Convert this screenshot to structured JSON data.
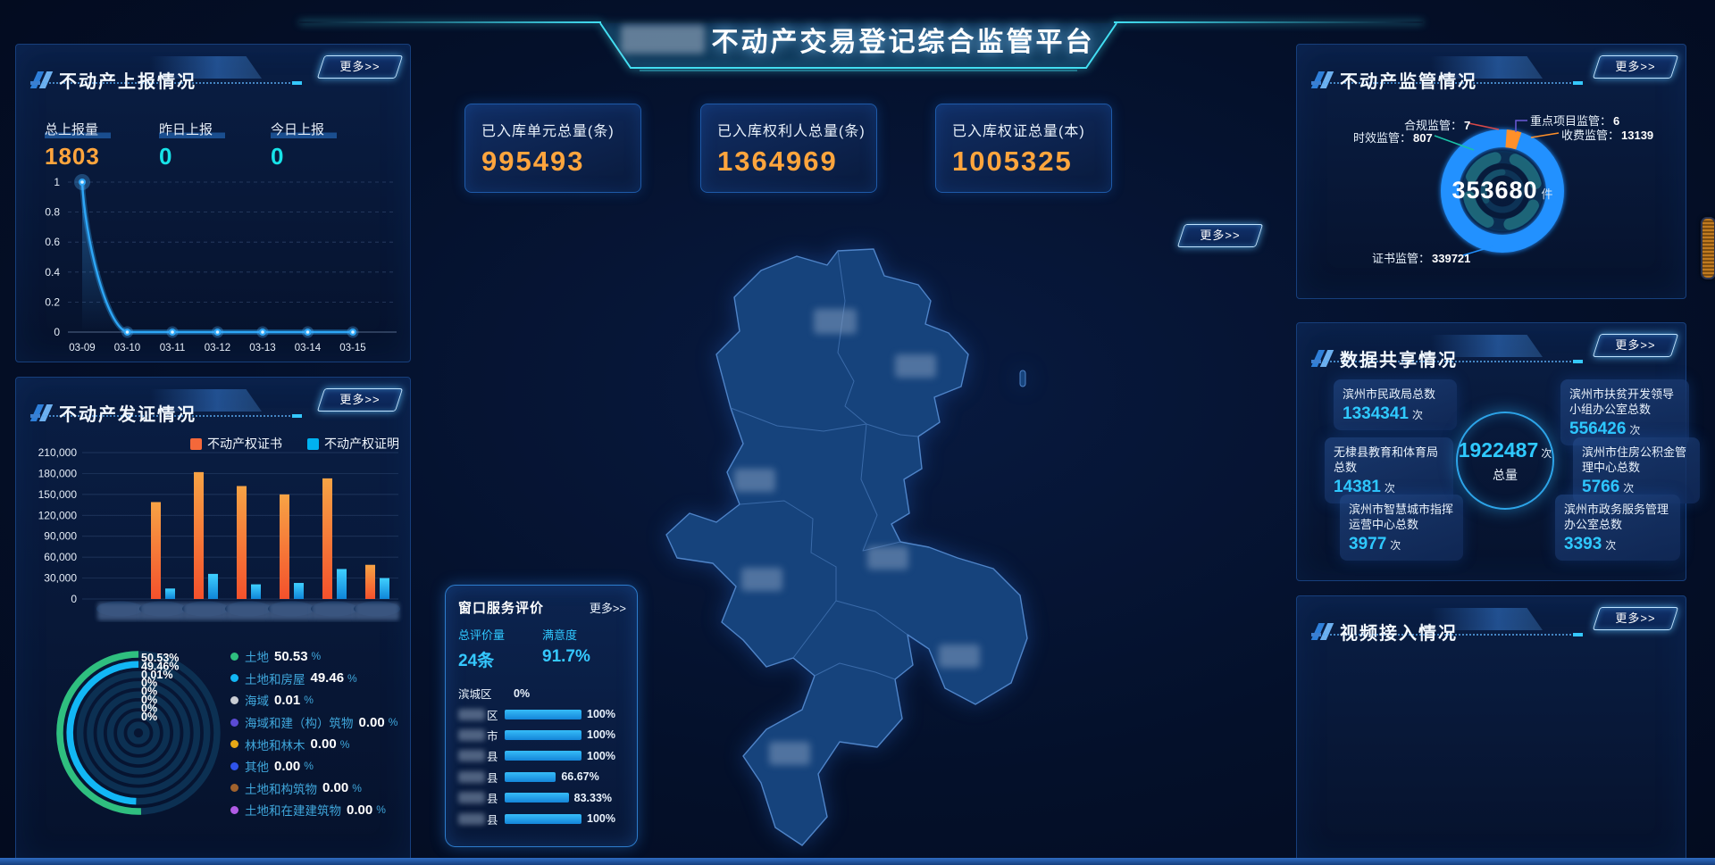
{
  "title": {
    "text": "不动产交易登记综合监管平台"
  },
  "buttons": {
    "more": "更多>>"
  },
  "panels": {
    "report": {
      "title": "不动产上报情况",
      "stats": [
        {
          "label": "总上报量",
          "value": "1803"
        },
        {
          "label": "昨日上报",
          "value": "0"
        },
        {
          "label": "今日上报",
          "value": "0"
        }
      ]
    },
    "issuance": {
      "title": "不动产发证情况"
    },
    "stat_cards": [
      {
        "label": "已入库单元总量(条)",
        "value": "995493"
      },
      {
        "label": "已入库权利人总量(条)",
        "value": "1364969"
      },
      {
        "label": "已入库权证总量(本)",
        "value": "1005325"
      }
    ],
    "window_service": {
      "title": "窗口服务评价",
      "more": "更多>>",
      "stats": [
        {
          "label": "总评价量",
          "value": "24条"
        },
        {
          "label": "满意度",
          "value": "91.7%"
        }
      ]
    },
    "supervision": {
      "title": "不动产监管情况",
      "center_value": "353680",
      "center_unit": "件",
      "callouts": [
        {
          "label": "时效监管：",
          "value": "807"
        },
        {
          "label": "合规监管：",
          "value": "7"
        },
        {
          "label": "重点项目监管：",
          "value": "6"
        },
        {
          "label": "收费监管：",
          "value": "13139"
        },
        {
          "label": "证书监管：",
          "value": "339721"
        }
      ]
    },
    "sharing": {
      "title": "数据共享情况",
      "total": {
        "value": "1922487",
        "unit": "次",
        "label": "总量"
      },
      "boxes": [
        {
          "name": "滨州市民政局总数",
          "value": "1334341",
          "unit": "次"
        },
        {
          "name": "无棣县教育和体育局总数",
          "value": "14381",
          "unit": "次"
        },
        {
          "name": "滨州市智慧城市指挥运营中心总数",
          "value": "3977",
          "unit": "次"
        },
        {
          "name": "滨州市扶贫开发领导小组办公室总数",
          "value": "556426",
          "unit": "次"
        },
        {
          "name": "滨州市住房公积金管理中心总数",
          "value": "5766",
          "unit": "次"
        },
        {
          "name": "滨州市政务服务管理办公室总数",
          "value": "3393",
          "unit": "次"
        }
      ]
    },
    "video": {
      "title": "视频接入情况"
    }
  },
  "colors": {
    "accent_cyan": "#17e3e8",
    "accent_orange": "#ffa53d",
    "line_blue": "#2ea6f6",
    "bar_orange": "#f4683a",
    "bar_blue": "#00b2f0",
    "header_glow": "#43dff2"
  },
  "chart_data": [
    {
      "id": "report_trend",
      "type": "line",
      "x": [
        "03-09",
        "03-10",
        "03-11",
        "03-12",
        "03-13",
        "03-14",
        "03-15"
      ],
      "series": [
        {
          "name": "上报量",
          "values": [
            1,
            0,
            0,
            0,
            0,
            0,
            0
          ],
          "color": "#2ea6f6"
        }
      ],
      "ylim": [
        0,
        1
      ],
      "yticks": [
        0,
        0.2,
        0.4,
        0.6,
        0.8,
        1
      ],
      "grid": true,
      "legend_position": "none"
    },
    {
      "id": "issuance_bar",
      "type": "bar",
      "categories": [
        "",
        "",
        "",
        "",
        "",
        "",
        ""
      ],
      "categories_censored": true,
      "series": [
        {
          "name": "不动产权证书",
          "color": "#f4683a",
          "values": [
            0,
            139000,
            182000,
            162000,
            150000,
            173000,
            49000
          ]
        },
        {
          "name": "不动产权证明",
          "color": "#00b2f0",
          "values": [
            0,
            15000,
            36000,
            21000,
            23000,
            43000,
            30000
          ]
        }
      ],
      "ylim": [
        0,
        210000
      ],
      "ytick_step": 30000,
      "grid": true,
      "legend_position": "top-right"
    },
    {
      "id": "issuance_type_radial",
      "type": "radial",
      "unit": "%",
      "ring_labels": [
        "50.53%",
        "49.46%",
        "0.01%",
        "0%",
        "0%",
        "0%",
        "0%",
        "0%"
      ],
      "items": [
        {
          "label": "土地",
          "value": "50.53",
          "color": "#2fbf7f"
        },
        {
          "label": "土地和房屋",
          "value": "49.46",
          "color": "#12b7f5"
        },
        {
          "label": "海域",
          "value": "0.01",
          "color": "#c9cdd4"
        },
        {
          "label": "海域和建（构）筑物",
          "value": "0.00",
          "color": "#5b4bd4"
        },
        {
          "label": "林地和林木",
          "value": "0.00",
          "color": "#e6a817"
        },
        {
          "label": "其他",
          "value": "0.00",
          "color": "#2f54eb"
        },
        {
          "label": "土地和构筑物",
          "value": "0.00",
          "color": "#a0622d"
        },
        {
          "label": "土地和在建建筑物",
          "value": "0.00",
          "color": "#b05ce6"
        }
      ]
    },
    {
      "id": "supervision_donut",
      "type": "pie",
      "center_total": {
        "value": 353680,
        "unit": "件"
      },
      "items": [
        {
          "label": "证书监管",
          "value": 339721,
          "color": "#2191ff"
        },
        {
          "label": "收费监管",
          "value": 13139,
          "color": "#ff9029"
        },
        {
          "label": "时效监管",
          "value": 807,
          "color": "#19c3a8"
        },
        {
          "label": "合规监管",
          "value": 7,
          "color": "#d84848"
        },
        {
          "label": "重点项目监管",
          "value": 6,
          "color": "#6a5bd8"
        }
      ]
    },
    {
      "id": "window_service_rating",
      "type": "hbar",
      "bar_color": "#29a8ec",
      "rows": [
        {
          "name": "滨城区",
          "censored": false,
          "suffix": "",
          "pct": 0,
          "pct_label": "0%"
        },
        {
          "name": "",
          "censored": true,
          "suffix": "区",
          "pct": 100,
          "pct_label": "100%"
        },
        {
          "name": "",
          "censored": true,
          "suffix": "市",
          "pct": 100,
          "pct_label": "100%"
        },
        {
          "name": "",
          "censored": true,
          "suffix": "县",
          "pct": 100,
          "pct_label": "100%"
        },
        {
          "name": "",
          "censored": true,
          "suffix": "县",
          "pct": 66.67,
          "pct_label": "66.67%"
        },
        {
          "name": "",
          "censored": true,
          "suffix": "县",
          "pct": 83.33,
          "pct_label": "83.33%"
        },
        {
          "name": "",
          "censored": true,
          "suffix": "县",
          "pct": 100,
          "pct_label": "100%"
        }
      ]
    }
  ]
}
